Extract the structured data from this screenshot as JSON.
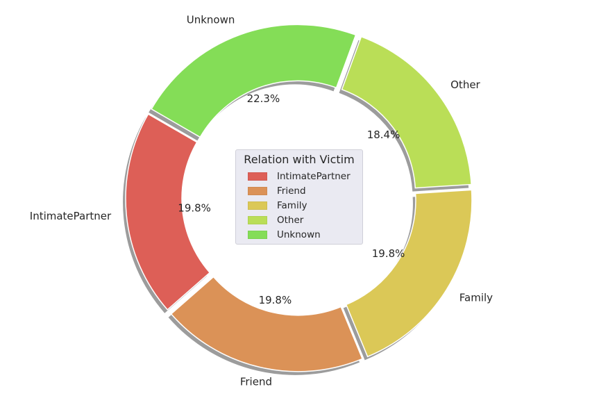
{
  "chart_data": {
    "type": "pie",
    "variant": "donut",
    "categories": [
      "IntimatePartner",
      "Friend",
      "Family",
      "Other",
      "Unknown"
    ],
    "values": [
      19.8,
      19.8,
      19.8,
      18.4,
      22.3
    ],
    "value_labels": [
      "19.8%",
      "19.8%",
      "19.8%",
      "18.4%",
      "22.3%"
    ],
    "colors": [
      "#dd5f57",
      "#db9257",
      "#dbc857",
      "#bade57",
      "#84dd57"
    ],
    "legend": {
      "title": "Relation with Victim",
      "placement": "center",
      "entries": [
        "IntimatePartner",
        "Friend",
        "Family",
        "Other",
        "Unknown"
      ]
    },
    "exploded": true,
    "shadow": true,
    "start_angle_deg": 150,
    "direction": "counterclockwise"
  }
}
